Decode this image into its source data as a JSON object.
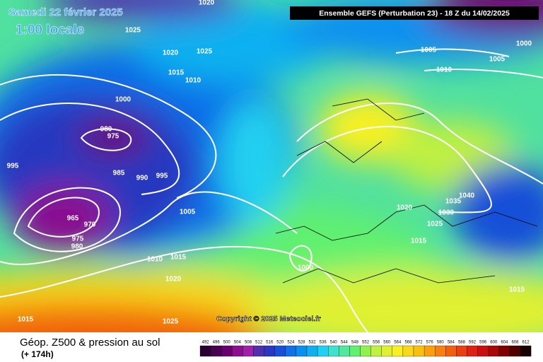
{
  "header": {
    "date": "Samedi 22 février 2025",
    "time": "1:00 locale",
    "model": "Ensemble GEFS  (Perturbation 23)  -  18 Z du 14/02/2025"
  },
  "copyright": "Copyright © 2025 Meteociel.fr",
  "footer": {
    "title": "Géop. Z500 & pression au sol",
    "lead": "(+ 174h)"
  },
  "isobar_labels": [
    1020,
    1025,
    1020,
    1025,
    1015,
    1010,
    1000,
    980,
    975,
    995,
    985,
    990,
    995,
    1005,
    965,
    970,
    975,
    980,
    1010,
    1015,
    1020,
    1015,
    1025,
    1005,
    1005,
    1000,
    1010,
    1040,
    1035,
    1030,
    1020,
    1025,
    1015,
    1000,
    1015
  ],
  "scale": {
    "values": [
      492,
      496,
      500,
      504,
      508,
      512,
      516,
      520,
      524,
      528,
      532,
      536,
      540,
      544,
      548,
      552,
      556,
      560,
      564,
      568,
      572,
      576,
      580,
      584,
      588,
      592,
      596,
      600,
      604,
      608,
      612
    ],
    "colors": [
      "#2a0030",
      "#4a0050",
      "#6a0070",
      "#8a1090",
      "#a020a8",
      "#5030b0",
      "#2838c0",
      "#1850d8",
      "#1070e8",
      "#0890f0",
      "#10b0f0",
      "#20d0f0",
      "#40e0d0",
      "#50e8a0",
      "#60f070",
      "#90f050",
      "#c0f040",
      "#e0f030",
      "#f8f020",
      "#f8d818",
      "#f8c010",
      "#f8a010",
      "#f88010",
      "#f06010",
      "#e84010",
      "#e02010",
      "#c81010",
      "#a80808",
      "#800000",
      "#500000",
      "#180000"
    ]
  }
}
